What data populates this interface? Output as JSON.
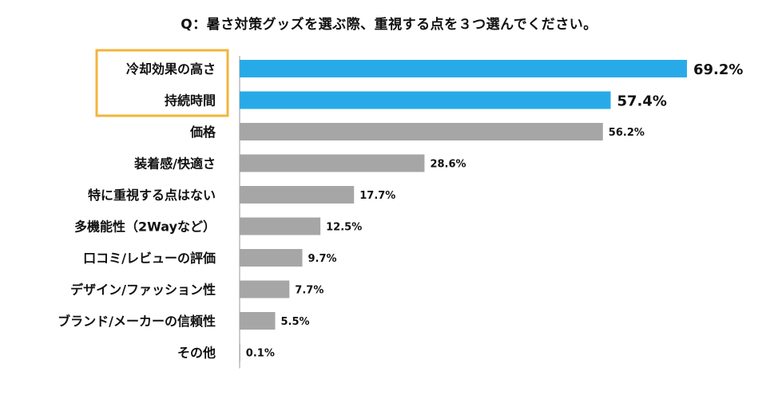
{
  "chart_data": {
    "type": "bar",
    "orientation": "horizontal",
    "title": "Q：暑さ対策グッズを選ぶ際、重視する点を３つ選んでください。",
    "categories": [
      "冷却効果の高さ",
      "持続時間",
      "価格",
      "装着感/快適さ",
      "特に重視する点はない",
      "多機能性（2Wayなど）",
      "口コミ/レビューの評価",
      "デザイン/ファッション性",
      "ブランド/メーカーの信頼性",
      "その他"
    ],
    "values": [
      69.2,
      57.4,
      56.2,
      28.6,
      17.7,
      12.5,
      9.7,
      7.7,
      5.5,
      0.1
    ],
    "value_labels": [
      "69.2%",
      "57.4%",
      "56.2%",
      "28.6%",
      "17.7%",
      "12.5%",
      "9.7%",
      "7.7%",
      "5.5%",
      "0.1%"
    ],
    "highlighted": [
      0,
      1
    ],
    "colors": {
      "highlight_bar": "#29aae8",
      "highlight_text": "#2f5fbf",
      "normal_bar": "#a6a6a6",
      "normal_text": "#111111",
      "highlight_box": "#f3b43c",
      "axis": "#bbbbbb"
    },
    "xlim": [
      0,
      70
    ],
    "grid": false,
    "legend": "none"
  }
}
